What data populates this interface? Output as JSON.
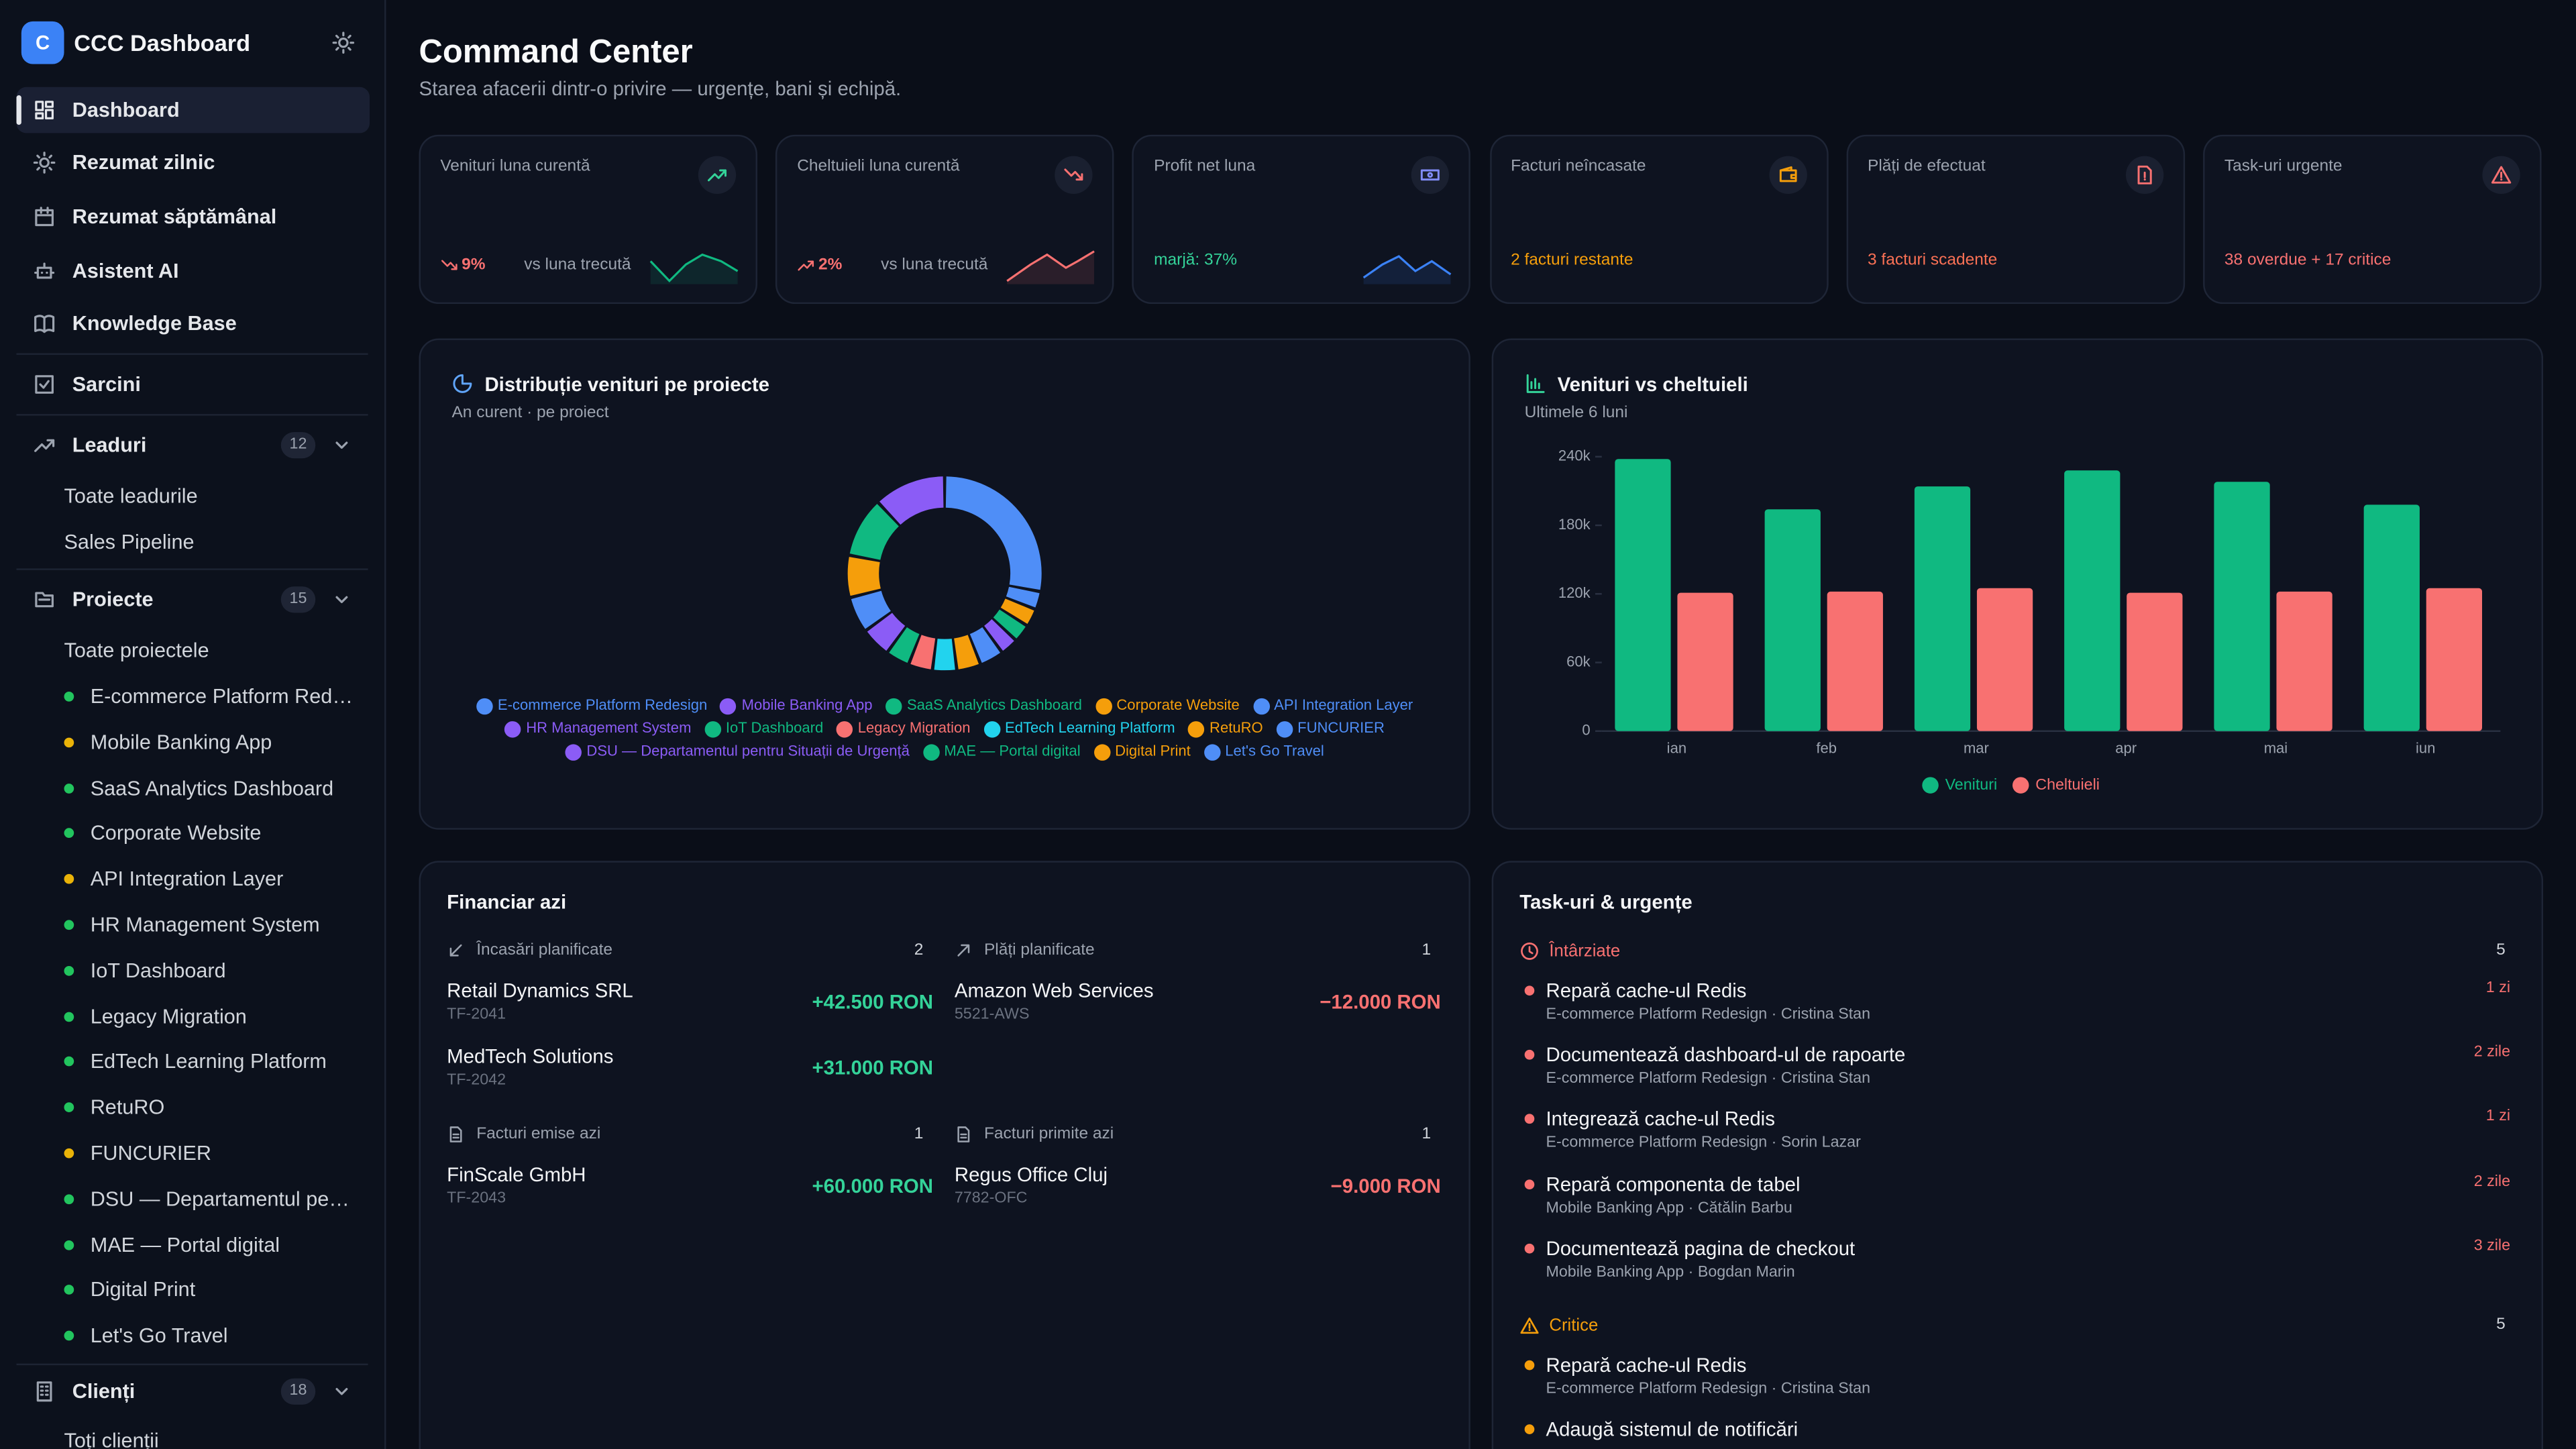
{
  "sidebar": {
    "logo_letter": "C",
    "app_name": "CCC Dashboard",
    "nav": [
      "Dashboard",
      "Rezumat zilnic",
      "Rezumat săptămânal",
      "Asistent AI",
      "Knowledge Base"
    ],
    "tasks_link": "Sarcini",
    "groups": [
      {
        "label": "Leaduri",
        "count": 12,
        "items": [
          {
            "label": "Toate leadurile"
          },
          {
            "label": "Sales Pipeline"
          }
        ]
      },
      {
        "label": "Proiecte",
        "count": 15,
        "items": [
          {
            "label": "Toate proiectele"
          },
          {
            "label": "E-commerce Platform Redesign",
            "status_color": "#22c55e"
          },
          {
            "label": "Mobile Banking App",
            "status_color": "#eab308"
          },
          {
            "label": "SaaS Analytics Dashboard",
            "status_color": "#22c55e"
          },
          {
            "label": "Corporate Website",
            "status_color": "#22c55e"
          },
          {
            "label": "API Integration Layer",
            "status_color": "#eab308"
          },
          {
            "label": "HR Management System",
            "status_color": "#22c55e"
          },
          {
            "label": "IoT Dashboard",
            "status_color": "#22c55e"
          },
          {
            "label": "Legacy Migration",
            "status_color": "#22c55e"
          },
          {
            "label": "EdTech Learning Platform",
            "status_color": "#22c55e"
          },
          {
            "label": "RetuRO",
            "status_color": "#22c55e"
          },
          {
            "label": "FUNCURIER",
            "status_color": "#eab308"
          },
          {
            "label": "DSU — Departamentul pentru Situații de Urgență",
            "status_color": "#22c55e"
          },
          {
            "label": "MAE — Portal digital",
            "status_color": "#22c55e"
          },
          {
            "label": "Digital Print",
            "status_color": "#22c55e"
          },
          {
            "label": "Let's Go Travel",
            "status_color": "#22c55e"
          }
        ]
      },
      {
        "label": "Clienți",
        "count": 18,
        "items": [
          {
            "label": "Toți clienții"
          }
        ]
      }
    ]
  },
  "header": {
    "title": "Command Center",
    "subtitle": "Starea afacerii dintr-o privire — urgențe, bani și echipă."
  },
  "kpis": [
    {
      "label": "Venituri luna curentă",
      "delta": "9%",
      "delta_note": "vs luna trecută",
      "accent": "#f87171",
      "icon_color": "#34d399",
      "spark_color": "#10b981"
    },
    {
      "label": "Cheltuieli luna curentă",
      "delta": "2%",
      "delta_note": "vs luna trecută",
      "accent": "#f87171",
      "icon_color": "#f87171",
      "spark_color": "#f87171"
    },
    {
      "label": "Profit net luna",
      "footer": "marjă: 37%",
      "accent": "#34d399",
      "icon_color": "#818cf8",
      "spark_color": "#3b82f6"
    },
    {
      "label": "Facturi neîncasate",
      "footer": "2 facturi restante",
      "accent": "#f59e0b",
      "icon_color": "#f59e0b"
    },
    {
      "label": "Plăți de efectuat",
      "footer": "3 facturi scadente",
      "accent": "#fb7155",
      "icon_color": "#f87171"
    },
    {
      "label": "Task-uri urgente",
      "footer": "38 overdue + 17 critice",
      "accent": "#f87171",
      "icon_color": "#f87171"
    }
  ],
  "revenue_distribution": {
    "title": "Distribuție venituri pe proiecte",
    "subtitle": "An curent · pe proiect",
    "chart": {
      "type": "donut",
      "categories": [
        "E-commerce Platform Redesign",
        "Mobile Banking App",
        "SaaS Analytics Dashboard",
        "Corporate Website",
        "API Integration Layer",
        "HR Management System",
        "IoT Dashboard",
        "Legacy Migration",
        "EdTech Learning Platform",
        "RetuRO",
        "FUNCURIER",
        "DSU — Departamentul pentru Situații de Urgență",
        "MAE — Portal digital",
        "Digital Print",
        "Let's Go Travel"
      ],
      "values": [
        28,
        12,
        10,
        7,
        6,
        5,
        4,
        4,
        4,
        4,
        4,
        3,
        3,
        3,
        3
      ],
      "colors": [
        "#4f8ef7",
        "#8b5cf6",
        "#10b981",
        "#f59e0b",
        "#4f8ef7",
        "#8b5cf6",
        "#10b981",
        "#f87171",
        "#22d3ee",
        "#f59e0b",
        "#4f8ef7",
        "#8b5cf6",
        "#10b981",
        "#f59e0b",
        "#4f8ef7"
      ]
    }
  },
  "revenue_vs_expenses": {
    "title": "Venituri vs cheltuieli",
    "subtitle": "Ultimele 6 luni",
    "chart": {
      "type": "bar",
      "categories": [
        "ian",
        "feb",
        "mar",
        "apr",
        "mai",
        "iun"
      ],
      "series": [
        {
          "name": "Venituri",
          "color": "#10b981",
          "values": [
            238000,
            194000,
            214000,
            228000,
            218000,
            198000
          ]
        },
        {
          "name": "Cheltuieli",
          "color": "#f87171",
          "values": [
            121000,
            122000,
            125000,
            121000,
            122000,
            125000
          ]
        }
      ],
      "ylim": [
        0,
        240000
      ],
      "yticks": [
        0,
        {
          "value": 60000,
          "label": "60k"
        },
        {
          "value": 120000,
          "label": "120k"
        },
        {
          "value": 180000,
          "label": "180k"
        },
        {
          "value": 240000,
          "label": "240k"
        }
      ],
      "grid": false
    }
  },
  "finance": {
    "title": "Financiar azi",
    "sections": [
      {
        "label": "Încasări planificate",
        "count": 2,
        "items": [
          {
            "name": "Retail Dynamics SRL",
            "ref": "TF-2041",
            "amount": "+42.500 RON",
            "color": "#34d399"
          },
          {
            "name": "MedTech Solutions",
            "ref": "TF-2042",
            "amount": "+31.000 RON",
            "color": "#34d399"
          }
        ]
      },
      {
        "label": "Plăți planificate",
        "count": 1,
        "items": [
          {
            "name": "Amazon Web Services",
            "ref": "5521-AWS",
            "amount": "−12.000 RON",
            "color": "#f87171"
          }
        ]
      },
      {
        "label": "Facturi emise azi",
        "count": 1,
        "items": [
          {
            "name": "FinScale GmbH",
            "ref": "TF-2043",
            "amount": "+60.000 RON",
            "color": "#34d399"
          }
        ]
      },
      {
        "label": "Facturi primite azi",
        "count": 1,
        "items": [
          {
            "name": "Regus Office Cluj",
            "ref": "7782-OFC",
            "amount": "−9.000 RON",
            "color": "#f87171"
          }
        ]
      }
    ]
  },
  "tasks": {
    "title": "Task-uri & urgențe",
    "groups": [
      {
        "label": "Întârziate",
        "count": 5,
        "color": "#f87171",
        "items": [
          {
            "title": "Repară cache-ul Redis",
            "meta": "E-commerce Platform Redesign · Cristina Stan",
            "due": "1 zi"
          },
          {
            "title": "Documentează dashboard-ul de rapoarte",
            "meta": "E-commerce Platform Redesign · Cristina Stan",
            "due": "2 zile"
          },
          {
            "title": "Integrează cache-ul Redis",
            "meta": "E-commerce Platform Redesign · Sorin Lazar",
            "due": "1 zi"
          },
          {
            "title": "Repară componenta de tabel",
            "meta": "Mobile Banking App · Cătălin Barbu",
            "due": "2 zile"
          },
          {
            "title": "Documentează pagina de checkout",
            "meta": "Mobile Banking App · Bogdan Marin",
            "due": "3 zile"
          }
        ]
      },
      {
        "label": "Critice",
        "count": 5,
        "color": "#f59e0b",
        "items": [
          {
            "title": "Repară cache-ul Redis",
            "meta": "E-commerce Platform Redesign · Cristina Stan"
          },
          {
            "title": "Adaugă sistemul de notificări"
          }
        ]
      }
    ]
  }
}
